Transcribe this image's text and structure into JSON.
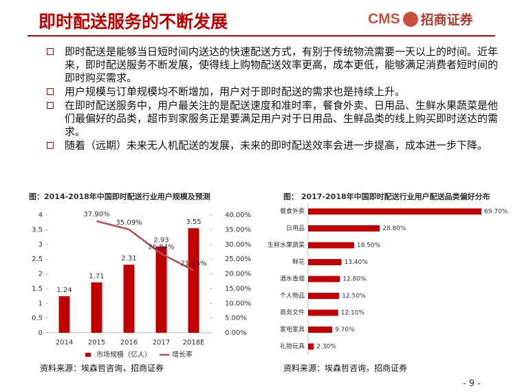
{
  "header": {
    "title": "即时配送服务的不断发展",
    "logo_text": "CMS",
    "logo_name": "招商证券"
  },
  "bullets": [
    "即时配送是能够当日短时间内送达的快速配送方式，有别于传统物流需要一天以上的时间。近年来，即时配送服务不断发展，使得线上购物配送效率更高，成本更低，能够满足消费者短时间的即时购买需求。",
    "用户规模与订单规模均不断增加，用户对于即时配送的需求也是持续上升。",
    "在即时配送服务中，用户最关注的是配送速度和准时率，餐食外卖、日用品、生鲜水果蔬菜是他们最偏好的品类，超市到家服务正是要满足用户对于日用品、生鲜品类的线上购买即时送达的需求。",
    "随着（远期）未来无人机配送的发展，未来的即时配送效率会进一步提高，成本进一步下降。"
  ],
  "chart_data": [
    {
      "type": "bar_line",
      "title": "图：2014-2018年中国即时配送行业用户规模及预测",
      "categories": [
        "2014",
        "2015",
        "2016",
        "2017",
        "2018E"
      ],
      "series": [
        {
          "name": "市场规模（亿人）",
          "color": "#c00000",
          "values": [
            1.24,
            1.71,
            2.31,
            2.93,
            3.55
          ]
        },
        {
          "name": "增长率",
          "color": "#b94a4a",
          "axis": "y2",
          "values": [
            null,
            37.9,
            35.09,
            26.84,
            21.16
          ],
          "value_labels": [
            null,
            "37.90%",
            "35.09%",
            "26.84%",
            "21.16%"
          ]
        }
      ],
      "ylim": [
        0,
        4
      ],
      "yticks": [
        0,
        0.5,
        1,
        1.5,
        2,
        2.5,
        3,
        3.5,
        4
      ],
      "y2lim": [
        0,
        40
      ],
      "y2ticks": [
        {
          "value": 0,
          "label": "0.00%"
        },
        {
          "value": 5,
          "label": "5.00%"
        },
        {
          "value": 10,
          "label": "10.00%"
        },
        {
          "value": 15,
          "label": "15.00%"
        },
        {
          "value": 20,
          "label": "20.00%"
        },
        {
          "value": 25,
          "label": "25.00%"
        },
        {
          "value": 30,
          "label": "30.00%"
        },
        {
          "value": 35,
          "label": "35.00%"
        },
        {
          "value": 40,
          "label": "40.00%"
        }
      ],
      "grid": false,
      "legend": "bottom",
      "source": "资料来源：埃森哲咨询，招商证券"
    },
    {
      "type": "hbar",
      "title": "图： 2017-2018年中国即时配送行业用户配送品类偏好分布",
      "categories": [
        "餐食外卖",
        "日用品",
        "生鲜水果蔬菜",
        "鲜花",
        "酒水香烟",
        "个人物品",
        "商务文件",
        "家电家具",
        "礼物玩具"
      ],
      "values": [
        69.7,
        28.8,
        18.5,
        13.4,
        12.8,
        12.5,
        12.1,
        9.7,
        2.3
      ],
      "value_labels": [
        "69.70%",
        "28.80%",
        "18.50%",
        "13.40%",
        "12.80%",
        "12.50%",
        "12.10%",
        "9.70%",
        "2.30%"
      ],
      "color": "#c00000",
      "source": "资料来源：埃森哲咨询，招商证券"
    }
  ],
  "page_number": "- 9 -"
}
